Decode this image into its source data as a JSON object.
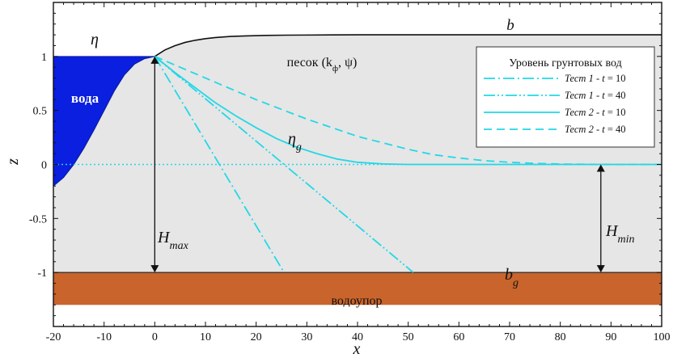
{
  "chart_data": {
    "type": "line",
    "xlabel": "x",
    "ylabel": "z",
    "xlim": [
      -20,
      100
    ],
    "ylim": [
      -1.5,
      1.5
    ],
    "x_ticks": [
      -20,
      -10,
      0,
      10,
      20,
      30,
      40,
      50,
      60,
      70,
      80,
      90,
      100
    ],
    "y_ticks": [
      -1,
      -0.5,
      0,
      0.5,
      1
    ],
    "y_tick_labels": [
      "-1",
      "-0.5",
      "0",
      "0.5",
      "1"
    ],
    "grid": false,
    "colors": {
      "water": "#0a1fe0",
      "sand": "#e6e6e6",
      "aquitard": "#c8642c",
      "groundwater": "#22d8e6",
      "boundary": "#111111"
    },
    "regions": {
      "water_label": "вода",
      "sand_label": "песок (k",
      "sand_label_sub": "ф",
      "sand_label_tail": ", ψ)",
      "aquitard_label": "водоупор"
    },
    "surface_b": {
      "name": "b",
      "x": [
        0,
        2,
        4,
        6,
        8,
        10,
        12,
        15,
        18,
        22,
        26,
        30,
        35,
        40,
        50,
        60,
        100
      ],
      "y": [
        1.0,
        1.06,
        1.1,
        1.13,
        1.15,
        1.165,
        1.175,
        1.185,
        1.19,
        1.195,
        1.197,
        1.198,
        1.199,
        1.2,
        1.2,
        1.2,
        1.2
      ]
    },
    "water_surface_eta": {
      "name": "η",
      "x": [
        -20,
        -18,
        -16,
        -14,
        -12,
        -10,
        -8,
        -6,
        -4,
        -2,
        0
      ],
      "y": [
        -0.2,
        -0.12,
        0.0,
        0.15,
        0.32,
        0.5,
        0.68,
        0.83,
        0.93,
        0.98,
        1.0
      ]
    },
    "mean_water_level": {
      "y": 0,
      "x_range": [
        -20,
        100
      ]
    },
    "bottom_bg": {
      "name": "b",
      "subscript": "g",
      "y": -1
    },
    "series": [
      {
        "name": "Тест 1 - t = 10",
        "style": "dashdot",
        "x": [
          0,
          25.5
        ],
        "y": [
          1.0,
          -1.0
        ]
      },
      {
        "name": "Тест 1 - t = 40",
        "style": "dashdotdot",
        "x": [
          0,
          51
        ],
        "y": [
          1.0,
          -1.0
        ]
      },
      {
        "name": "Тест 2 - t = 10",
        "style": "solid",
        "x": [
          0,
          4,
          8,
          12,
          16,
          20,
          24,
          28,
          32,
          36,
          40,
          45,
          50,
          55,
          60,
          100
        ],
        "y": [
          1.0,
          0.85,
          0.71,
          0.57,
          0.45,
          0.34,
          0.24,
          0.16,
          0.1,
          0.05,
          0.02,
          0.005,
          0.0,
          0.0,
          0.0,
          0.0
        ]
      },
      {
        "name": "Тест 2 - t = 40",
        "style": "dashed",
        "x": [
          0,
          5,
          10,
          15,
          20,
          25,
          30,
          35,
          40,
          45,
          50,
          55,
          60,
          65,
          70,
          75,
          80,
          90,
          100
        ],
        "y": [
          1.0,
          0.9,
          0.8,
          0.7,
          0.6,
          0.51,
          0.42,
          0.34,
          0.26,
          0.2,
          0.14,
          0.09,
          0.06,
          0.035,
          0.02,
          0.01,
          0.004,
          0.0,
          0.0
        ]
      }
    ],
    "legend": {
      "title": "Уровень грунтовых вод",
      "placement": "top-right",
      "entries": [
        {
          "prefix": "Тест 1 - ",
          "t": "t",
          "value": " = 10"
        },
        {
          "prefix": "Тест 1 - ",
          "t": "t",
          "value": " = 40"
        },
        {
          "prefix": "Тест 2 - ",
          "t": "t",
          "value": " = 10"
        },
        {
          "prefix": "Тест 2 - ",
          "t": "t",
          "value": " = 40"
        }
      ]
    },
    "annotations": {
      "eta": "η",
      "eta_g": "η",
      "eta_g_sub": "g",
      "hmax": "H",
      "hmax_sub": "max",
      "hmin": "H",
      "hmin_sub": "min",
      "b_label": "b",
      "bg_label": "b",
      "bg_sub": "g"
    },
    "hmax_arrow": {
      "x": 0,
      "y_from": 1.0,
      "y_to": -1.0
    },
    "hmin_arrow": {
      "x": 88,
      "y_from": 0.0,
      "y_to": -1.0
    }
  }
}
